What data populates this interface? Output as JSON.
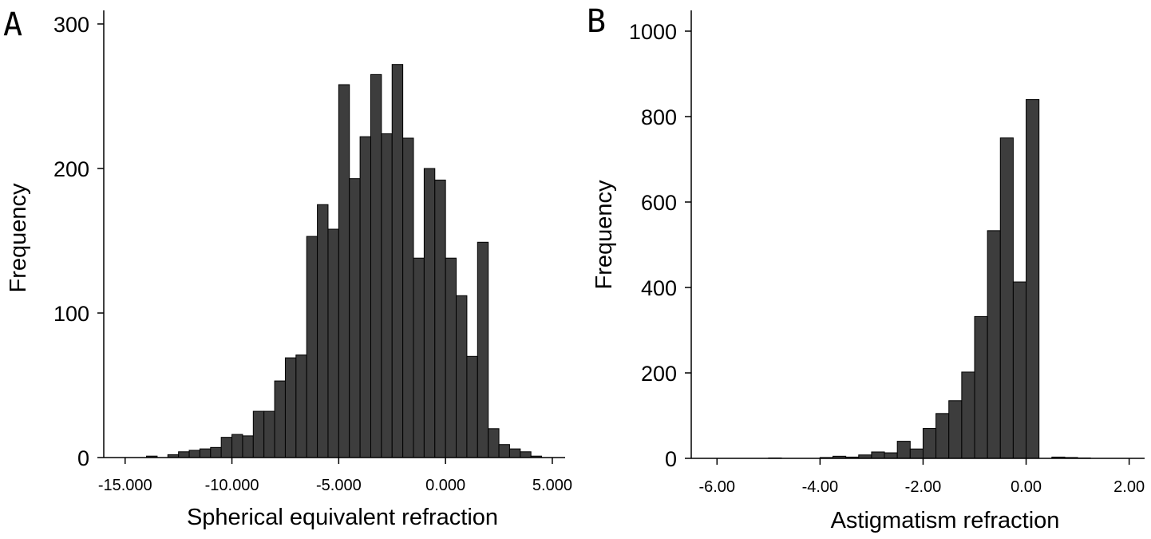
{
  "chart_data": [
    {
      "type": "bar",
      "panel_label": "A",
      "xlabel": "Spherical equivalent refraction",
      "ylabel": "Frequency",
      "xlim": [
        -16.0,
        5.6
      ],
      "ylim": [
        0,
        300
      ],
      "xticks": [
        -15,
        -10,
        -5,
        0,
        5
      ],
      "xtick_labels": [
        "-15.000",
        "-10.000",
        "-5.000",
        "0.000",
        "5.000"
      ],
      "yticks": [
        0,
        100,
        200,
        300
      ],
      "ytick_labels": [
        "0",
        "100",
        "200",
        "300"
      ],
      "bin_width": 0.5,
      "bins_start": [
        -14.0,
        -13.5,
        -13.0,
        -12.5,
        -12.0,
        -11.5,
        -11.0,
        -10.5,
        -10.0,
        -9.5,
        -9.0,
        -8.5,
        -8.0,
        -7.5,
        -7.0,
        -6.5,
        -6.0,
        -5.5,
        -5.0,
        -4.5,
        -4.0,
        -3.5,
        -3.0,
        -2.5,
        -2.0,
        -1.5,
        -1.0,
        -0.5,
        0.0,
        0.5,
        1.0,
        1.5,
        2.0,
        2.5,
        3.0,
        3.5,
        4.0
      ],
      "values": [
        1,
        0,
        2,
        4,
        5,
        6,
        7,
        14,
        16,
        15,
        32,
        32,
        53,
        69,
        71,
        153,
        175,
        158,
        258,
        193,
        222,
        265,
        224,
        272,
        221,
        138,
        200,
        192,
        138,
        112,
        70,
        149,
        20,
        9,
        6,
        4,
        1
      ]
    },
    {
      "type": "bar",
      "panel_label": "B",
      "xlabel": "Astigmatism refraction",
      "ylabel": "Frequency",
      "xlim": [
        -6.5,
        2.3
      ],
      "ylim": [
        0,
        1000
      ],
      "xticks": [
        -6,
        -4,
        -2,
        0,
        2
      ],
      "xtick_labels": [
        "-6.00",
        "-4.00",
        "-2.00",
        "0.00",
        "2.00"
      ],
      "yticks": [
        0,
        200,
        400,
        600,
        800,
        1000
      ],
      "ytick_labels": [
        "0",
        "200",
        "400",
        "600",
        "800",
        "1000"
      ],
      "bin_width": 0.25,
      "bins_start": [
        -5.0,
        -4.0,
        -3.75,
        -3.5,
        -3.25,
        -3.0,
        -2.75,
        -2.5,
        -2.25,
        -2.0,
        -1.75,
        -1.5,
        -1.25,
        -1.0,
        -0.75,
        -0.5,
        -0.25,
        0.0,
        0.25,
        0.5,
        0.75,
        1.0
      ],
      "values": [
        1,
        2,
        5,
        3,
        8,
        15,
        13,
        40,
        22,
        70,
        105,
        135,
        202,
        332,
        533,
        750,
        413,
        840,
        0,
        3,
        2,
        1
      ]
    }
  ]
}
